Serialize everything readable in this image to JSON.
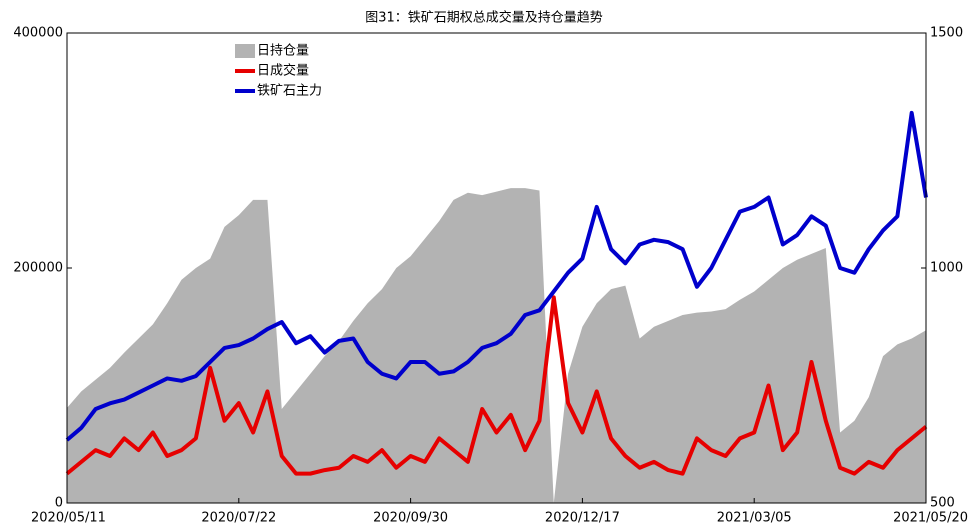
{
  "chart_data": {
    "type": "line",
    "title": "图31：铁矿石期权总成交量及持仓量趋势",
    "categories": [
      "2020/05/11",
      null,
      null,
      null,
      null,
      null,
      null,
      null,
      null,
      null,
      null,
      null,
      "2020/07/22",
      null,
      null,
      null,
      null,
      null,
      null,
      null,
      null,
      null,
      null,
      null,
      "2020/09/30",
      null,
      null,
      null,
      null,
      null,
      null,
      null,
      null,
      null,
      null,
      null,
      "2020/12/17",
      null,
      null,
      null,
      null,
      null,
      null,
      null,
      null,
      null,
      null,
      null,
      "2021/03/05",
      null,
      null,
      null,
      null,
      null,
      null,
      null,
      null,
      null,
      null,
      null,
      "2021/05/20"
    ],
    "ylim": [
      0,
      400000
    ],
    "yticks": [
      0,
      200000,
      400000
    ],
    "y2lim": [
      500,
      1500
    ],
    "y2ticks": [
      500,
      1000,
      1500
    ],
    "legend": "upper left",
    "series": [
      {
        "name": "日持仓量",
        "type": "area",
        "color": "#b3b3b3",
        "values": [
          81000,
          95000,
          105000,
          115000,
          128000,
          140000,
          152000,
          170000,
          190000,
          200000,
          208000,
          235000,
          245000,
          258000,
          258000,
          80000,
          95000,
          110000,
          125000,
          138000,
          155000,
          170000,
          182000,
          200000,
          210000,
          225000,
          240000,
          258000,
          264000,
          262000,
          265000,
          268000,
          268000,
          266000,
          0,
          110000,
          150000,
          170000,
          182000,
          185000,
          140000,
          150000,
          155000,
          160000,
          162000,
          163000,
          165000,
          173000,
          180000,
          190000,
          200000,
          207000,
          212000,
          217000,
          60000,
          70000,
          90000,
          125000,
          135000,
          140000,
          147000
        ]
      },
      {
        "name": "日成交量",
        "type": "line",
        "color": "#e60000",
        "values": [
          25000,
          35000,
          45000,
          40000,
          55000,
          45000,
          60000,
          40000,
          45000,
          55000,
          115000,
          70000,
          85000,
          60000,
          95000,
          40000,
          25000,
          25000,
          28000,
          30000,
          40000,
          35000,
          45000,
          30000,
          40000,
          35000,
          55000,
          45000,
          35000,
          80000,
          60000,
          75000,
          45000,
          70000,
          175000,
          85000,
          60000,
          95000,
          55000,
          40000,
          30000,
          35000,
          28000,
          25000,
          55000,
          45000,
          40000,
          55000,
          60000,
          100000,
          45000,
          60000,
          120000,
          70000,
          30000,
          25000,
          35000,
          30000,
          45000,
          55000,
          65000
        ]
      },
      {
        "name": "铁矿石主力",
        "type": "line",
        "axis": "y2",
        "color": "#0000cc",
        "values": [
          634,
          660,
          700,
          712,
          720,
          735,
          750,
          765,
          760,
          770,
          800,
          830,
          836,
          850,
          870,
          885,
          840,
          855,
          820,
          845,
          850,
          800,
          775,
          765,
          800,
          800,
          775,
          780,
          800,
          830,
          840,
          860,
          900,
          910,
          950,
          990,
          1020,
          1130,
          1040,
          1010,
          1050,
          1060,
          1055,
          1040,
          960,
          1000,
          1060,
          1120,
          1130,
          1150,
          1050,
          1070,
          1110,
          1090,
          1000,
          990,
          1040,
          1080,
          1110,
          1330,
          1150
        ]
      }
    ]
  }
}
